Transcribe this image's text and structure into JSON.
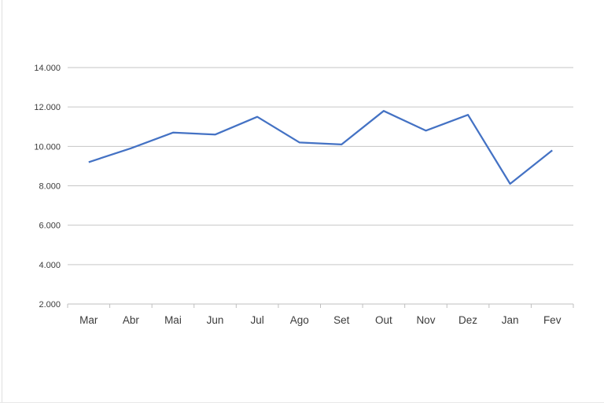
{
  "chart_data": {
    "type": "line",
    "categories": [
      "Mar",
      "Abr",
      "Mai",
      "Jun",
      "Jul",
      "Ago",
      "Set",
      "Out",
      "Nov",
      "Dez",
      "Jan",
      "Fev"
    ],
    "values": [
      9200,
      9900,
      10700,
      10600,
      11500,
      10200,
      10100,
      11800,
      10800,
      11600,
      8100,
      9800
    ],
    "series_name": "",
    "title": "",
    "xlabel": "",
    "ylabel": "",
    "ylim": [
      2000,
      14000
    ],
    "ytick_interval": 2000,
    "ytick_labels": [
      "2.000",
      "4.000",
      "6.000",
      "8.000",
      "10.000",
      "12.000",
      "14.000"
    ],
    "grid": "horizontal-on",
    "legend": "none",
    "colors": {
      "line": "#4472C4",
      "gridline": "#C6C6C6",
      "axis": "#BFBFBF",
      "label": "#3B3B3B",
      "background": "#FFFFFF"
    }
  }
}
